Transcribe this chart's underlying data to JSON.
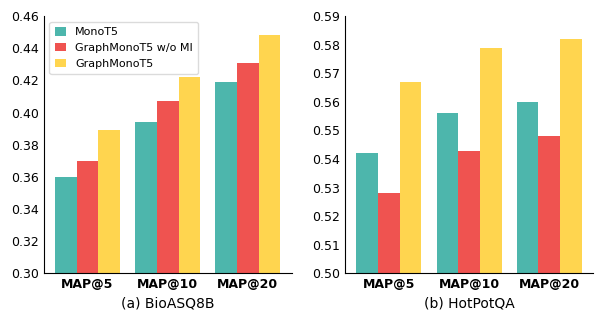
{
  "bioasq_categories": [
    "MAP@5",
    "MAP@10",
    "MAP@20"
  ],
  "bioasq_monot5": [
    0.36,
    0.394,
    0.419
  ],
  "bioasq_graph_wo_mi": [
    0.37,
    0.407,
    0.431
  ],
  "bioasq_graph": [
    0.389,
    0.422,
    0.448
  ],
  "bioasq_ylim": [
    0.3,
    0.46
  ],
  "bioasq_yticks": [
    0.3,
    0.32,
    0.34,
    0.36,
    0.38,
    0.4,
    0.42,
    0.44,
    0.46
  ],
  "hotpot_categories": [
    "MAP@5",
    "MAP@10",
    "MAP@20"
  ],
  "hotpot_monot5": [
    0.542,
    0.556,
    0.56
  ],
  "hotpot_graph_wo_mi": [
    0.528,
    0.543,
    0.548
  ],
  "hotpot_graph": [
    0.567,
    0.579,
    0.582
  ],
  "hotpot_ylim": [
    0.5,
    0.59
  ],
  "hotpot_yticks": [
    0.5,
    0.51,
    0.52,
    0.53,
    0.54,
    0.55,
    0.56,
    0.57,
    0.58,
    0.59
  ],
  "color_monot5": "#4db6ac",
  "color_graph_wo_mi": "#ef5350",
  "color_graph": "#ffd54f",
  "legend_labels": [
    "MonoT5",
    "GraphMonoT5 w/o MI",
    "GraphMonoT5"
  ],
  "xlabel_a": "(a) BioASQ8B",
  "xlabel_b": "(b) HotPotQA",
  "bar_width": 0.27,
  "tick_fontsize": 9,
  "legend_fontsize": 8
}
